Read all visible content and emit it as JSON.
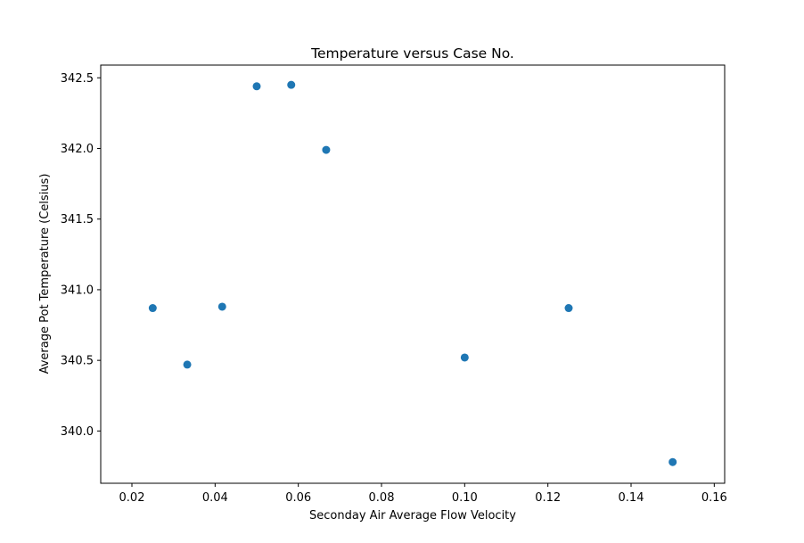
{
  "chart_data": {
    "type": "scatter",
    "title": "Temperature versus Case No.",
    "xlabel": "Seconday Air Average Flow Velocity",
    "ylabel": "Average Pot Temperature (Celsius)",
    "xlim": [
      0.0125,
      0.1625
    ],
    "ylim": [
      339.63,
      342.59
    ],
    "xticks": [
      0.02,
      0.04,
      0.06,
      0.08,
      0.1,
      0.12,
      0.14,
      0.16
    ],
    "xtick_labels": [
      "0.02",
      "0.04",
      "0.06",
      "0.08",
      "0.10",
      "0.12",
      "0.14",
      "0.16"
    ],
    "yticks": [
      340.0,
      340.5,
      341.0,
      341.5,
      342.0,
      342.5
    ],
    "ytick_labels": [
      "340.0",
      "340.5",
      "341.0",
      "341.5",
      "342.0",
      "342.5"
    ],
    "grid": false,
    "marker_color": "#1f77b4",
    "x": [
      0.025,
      0.0333,
      0.0417,
      0.05,
      0.0583,
      0.0667,
      0.1,
      0.125,
      0.15
    ],
    "y": [
      340.87,
      340.47,
      340.88,
      342.44,
      342.45,
      341.99,
      340.52,
      340.87,
      339.78
    ]
  }
}
